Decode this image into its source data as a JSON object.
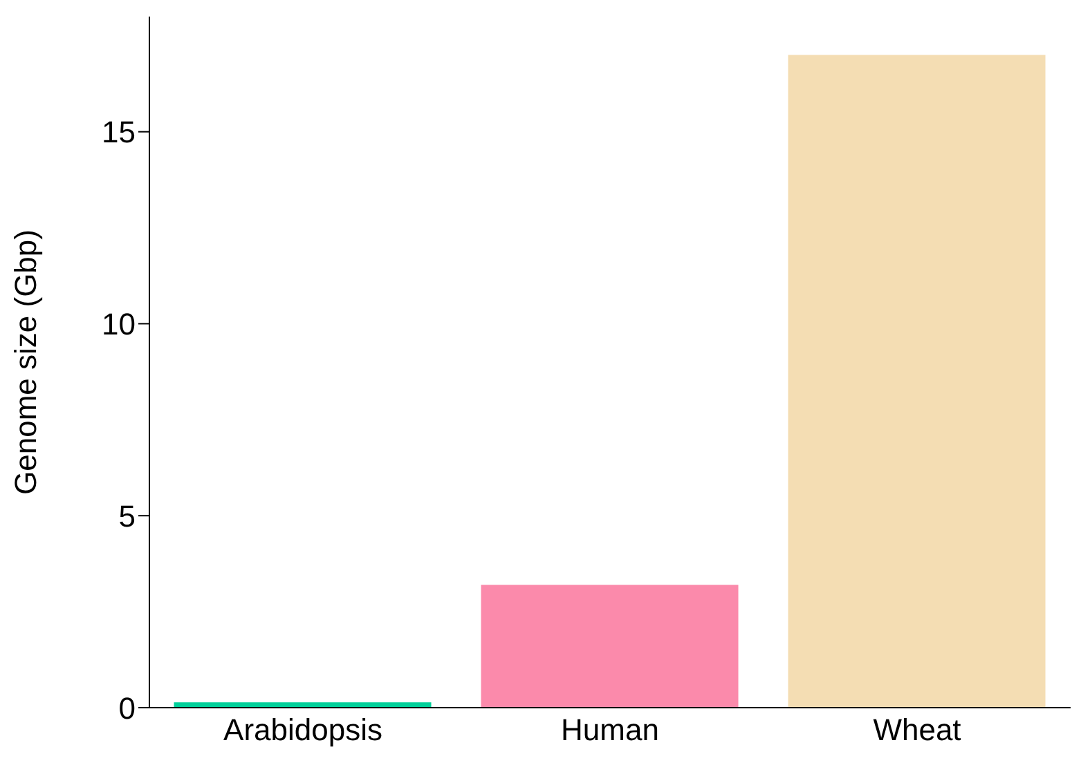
{
  "chart_data": {
    "type": "bar",
    "ylabel": "Genome size (Gbp)",
    "categories": [
      "Arabidopsis",
      "Human",
      "Wheat"
    ],
    "values": [
      0.14,
      3.2,
      17
    ],
    "colors": [
      "#00d09a",
      "#fb8aab",
      "#f4ddb3"
    ],
    "ylim": [
      0,
      18
    ],
    "yticks": [
      0,
      5,
      10,
      15
    ],
    "grid": false,
    "legend": false
  }
}
